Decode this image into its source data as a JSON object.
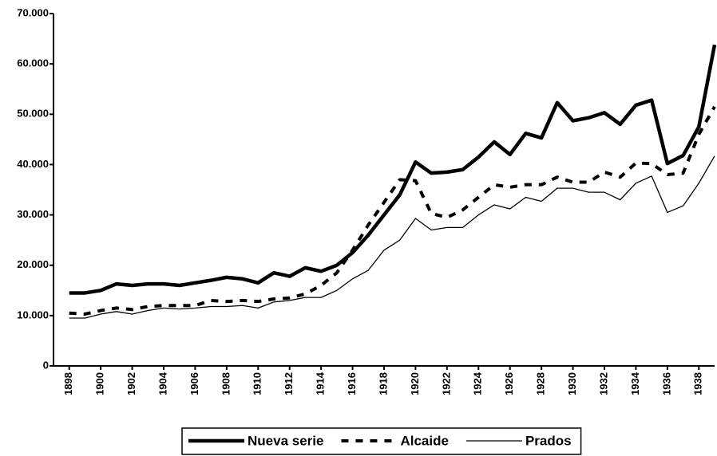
{
  "chart_data": {
    "type": "line",
    "x": [
      1898,
      1899,
      1900,
      1901,
      1902,
      1903,
      1904,
      1905,
      1906,
      1907,
      1908,
      1909,
      1910,
      1911,
      1912,
      1913,
      1914,
      1915,
      1916,
      1917,
      1918,
      1919,
      1920,
      1921,
      1922,
      1923,
      1924,
      1925,
      1926,
      1927,
      1928,
      1929,
      1930,
      1931,
      1932,
      1933,
      1934,
      1935,
      1936,
      1937,
      1938,
      1939
    ],
    "series": [
      {
        "name": "Nueva serie",
        "color": "#000000",
        "line_width": 4.5,
        "dash": "none",
        "values": [
          14500,
          14500,
          15000,
          16300,
          16000,
          16300,
          16300,
          16000,
          16500,
          17000,
          17600,
          17300,
          16500,
          18500,
          17800,
          19500,
          18800,
          20000,
          22500,
          26000,
          30000,
          34000,
          40500,
          38300,
          38500,
          39000,
          41500,
          44500,
          42000,
          46200,
          45300,
          52300,
          48700,
          49300,
          50300,
          48000,
          51800,
          52800,
          40200,
          41800,
          47500,
          63800
        ]
      },
      {
        "name": "Alcaide",
        "color": "#000000",
        "line_width": 4,
        "dash": "9 9",
        "values": [
          10500,
          10300,
          11000,
          11500,
          11200,
          11800,
          12000,
          12000,
          12000,
          13000,
          12800,
          13000,
          12800,
          13300,
          13500,
          14300,
          16000,
          18500,
          23000,
          28000,
          32500,
          37000,
          36800,
          30300,
          29500,
          31000,
          33500,
          36000,
          35500,
          36000,
          36000,
          37500,
          36500,
          36500,
          38500,
          37500,
          40300,
          40200,
          38000,
          38300,
          46000,
          51500
        ]
      },
      {
        "name": "Prados",
        "color": "#000000",
        "line_width": 1.3,
        "dash": "none",
        "values": [
          9500,
          9500,
          10300,
          10800,
          10300,
          11000,
          11500,
          11300,
          11500,
          11800,
          11800,
          12000,
          11500,
          12700,
          13000,
          13600,
          13600,
          15000,
          17300,
          19000,
          23000,
          25000,
          29300,
          27000,
          27500,
          27500,
          30000,
          32000,
          31200,
          33500,
          32700,
          35300,
          35300,
          34500,
          34500,
          33000,
          36300,
          37700,
          30500,
          31800,
          36300,
          41700
        ]
      }
    ],
    "xlim": [
      1897,
      1939
    ],
    "xticks": [
      1898,
      1900,
      1902,
      1904,
      1906,
      1908,
      1910,
      1912,
      1914,
      1916,
      1918,
      1920,
      1922,
      1924,
      1926,
      1928,
      1930,
      1932,
      1934,
      1936,
      1938
    ],
    "ylim": [
      0,
      70000
    ],
    "yticks": [
      0,
      {
        "value": 10000,
        "label": "10.000"
      },
      {
        "value": 20000,
        "label": "20.000"
      },
      {
        "value": 30000,
        "label": "30.000"
      },
      {
        "value": 40000,
        "label": "40.000"
      },
      {
        "value": 50000,
        "label": "50.000"
      },
      {
        "value": 60000,
        "label": "60.000"
      },
      {
        "value": 70000,
        "label": "70.000"
      }
    ],
    "grid": false,
    "legend": "bottom"
  }
}
